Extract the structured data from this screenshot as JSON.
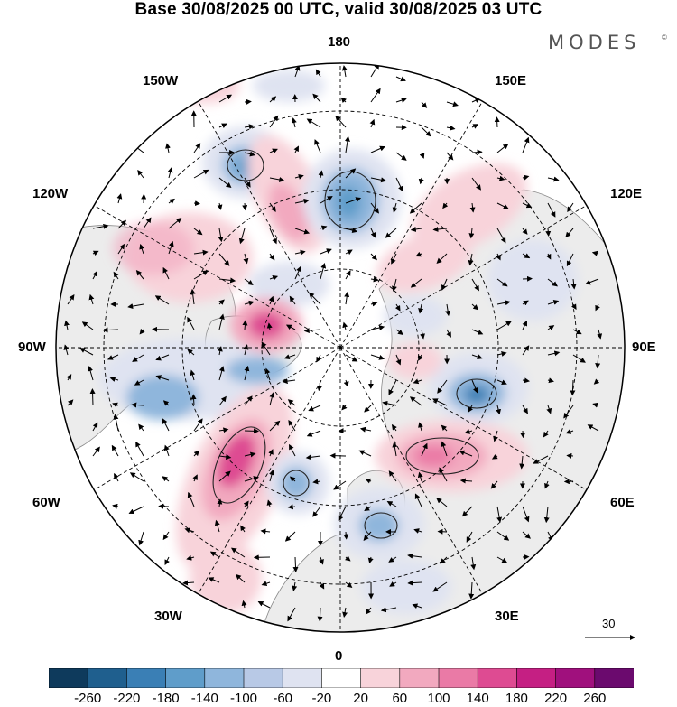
{
  "title": "Base 30/08/2025 00 UTC, valid 30/08/2025 03 UTC",
  "brand": "MODES",
  "brand_mark": "©",
  "longitude_labels": {
    "top": "180",
    "bottom": "0",
    "left": "90W",
    "right": "90E",
    "upper_left": "150W",
    "upper_right": "150E",
    "mid_upper_left": "120W",
    "mid_upper_right": "120E",
    "mid_lower_left": "60W",
    "mid_lower_right": "60E",
    "lower_left": "30W",
    "lower_right": "30E"
  },
  "vector_reference": "30",
  "colorbar": {
    "colors": [
      "#0e3a5c",
      "#1f5f8e",
      "#3a7fb5",
      "#5f9dca",
      "#8fb6dc",
      "#b8c9e6",
      "#dfe3f1",
      "#ffffff",
      "#f8d3da",
      "#f2a9bf",
      "#ea7aa6",
      "#de4b92",
      "#c51f83",
      "#a0107d",
      "#6b0a6e"
    ],
    "ticks": [
      "-260",
      "-220",
      "-180",
      "-140",
      "-100",
      "-60",
      "-20",
      "20",
      "60",
      "100",
      "140",
      "180",
      "220",
      "260"
    ]
  },
  "colors": {
    "positive_strong": "#de4b92",
    "positive_weak": "#f8d3da",
    "negative_strong": "#3a7fb5",
    "negative_weak": "#dfe3f1",
    "land": "#ececec"
  }
}
